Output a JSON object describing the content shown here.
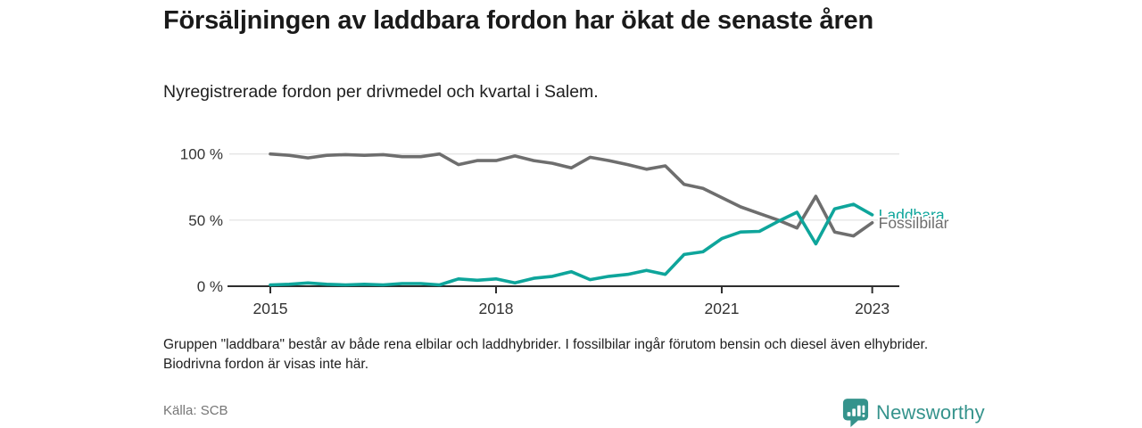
{
  "header": {
    "title": "Försäljningen av laddbara fordon har ökat de senaste åren",
    "subtitle": "Nyregistrerade fordon per drivmedel och kvartal i Salem."
  },
  "chart_data": {
    "type": "line",
    "unit": "%",
    "x_start_year": 2015,
    "x_step_years": 0.25,
    "x_tick_years": [
      2015,
      2018,
      2021,
      2023
    ],
    "x_tick_labels": [
      "2015",
      "2018",
      "2021",
      "2023"
    ],
    "y_ticks": [
      {
        "value": 0,
        "label": "0 %"
      },
      {
        "value": 50,
        "label": "50 %"
      },
      {
        "value": 100,
        "label": "100 %"
      }
    ],
    "ylim": [
      0,
      100
    ],
    "grid": "horizontal",
    "legend": "line-end-labels",
    "series": [
      {
        "name": "Fossilbilar",
        "color": "#6e6e6e",
        "values": [
          100,
          99,
          97,
          99,
          99.5,
          99,
          99.5,
          98,
          98,
          100,
          92,
          95,
          95,
          98.5,
          95,
          93,
          89.5,
          97.5,
          95,
          92,
          88.5,
          91,
          77,
          74,
          67,
          60,
          55,
          50,
          44,
          68,
          41,
          38,
          48
        ]
      },
      {
        "name": "Laddbara",
        "color": "#0ea59b",
        "values": [
          1,
          1.5,
          2.5,
          1.5,
          1,
          1.5,
          1,
          2,
          2,
          1,
          5.5,
          4.5,
          5.5,
          2.5,
          6,
          7.5,
          11,
          5,
          7.5,
          9,
          12,
          9,
          24,
          26,
          36,
          41,
          41.5,
          49,
          56,
          32,
          58.5,
          62,
          54
        ]
      }
    ]
  },
  "footer": {
    "note": "Gruppen \"laddbara\" består av både rena elbilar och laddhybrider. I fossilbilar ingår förutom bensin och diesel även elhybrider. Biodrivna fordon är visas inte här.",
    "source": "Källa: SCB",
    "brand": "Newsworthy",
    "brand_color": "#35938c"
  }
}
